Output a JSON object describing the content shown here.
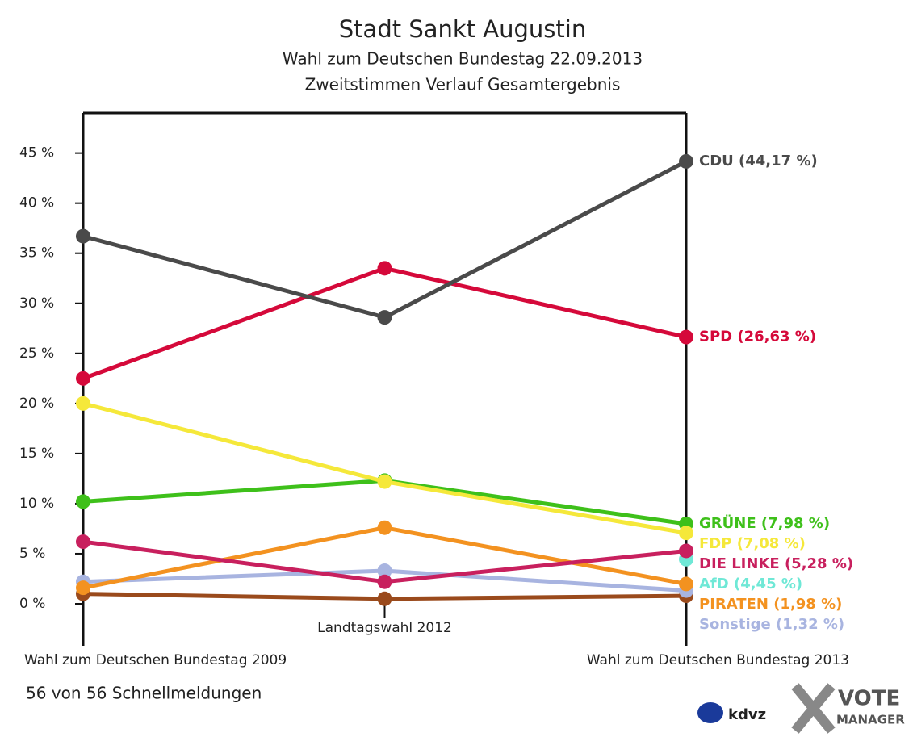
{
  "chart_data": {
    "type": "line",
    "title": "Stadt Sankt Augustin",
    "subtitle": "Wahl zum Deutschen Bundestag 22.09.2013",
    "subtitle2": "Zweitstimmen Verlauf Gesamtergebnis",
    "categories": [
      "Wahl zum Deutschen Bundestag 2009",
      "Landtagswahl 2012",
      "Wahl zum Deutschen Bundestag 2013"
    ],
    "ylim": [
      0,
      49
    ],
    "yticks": [
      {
        "value": 0,
        "label": "0 %"
      },
      {
        "value": 5,
        "label": "5 %"
      },
      {
        "value": 10,
        "label": "10 %"
      },
      {
        "value": 15,
        "label": "15 %"
      },
      {
        "value": 20,
        "label": "20 %"
      },
      {
        "value": 25,
        "label": "25 %"
      },
      {
        "value": 30,
        "label": "30 %"
      },
      {
        "value": 35,
        "label": "35 %"
      },
      {
        "value": 40,
        "label": "40 %"
      },
      {
        "value": 45,
        "label": "45 %"
      }
    ],
    "series": [
      {
        "color": "#4a4a4a",
        "values": [
          36.7,
          28.6,
          44.17
        ],
        "value_labels": [
          null,
          null,
          "CDU (44,17 %)"
        ]
      },
      {
        "color": "#d5093a",
        "values": [
          22.5,
          33.5,
          26.63
        ],
        "value_labels": [
          null,
          null,
          "SPD (26,63 %)"
        ]
      },
      {
        "color": "#f5e83a",
        "values": [
          20.0,
          12.2,
          7.08
        ],
        "value_labels": [
          null,
          null,
          "FDP (7,08 %)"
        ]
      },
      {
        "color": "#3ec01a",
        "values": [
          10.2,
          12.3,
          7.98
        ],
        "value_labels": [
          null,
          null,
          "GRÜNE (7,98 %)"
        ]
      },
      {
        "color": "#c8205e",
        "values": [
          6.2,
          2.2,
          5.28
        ],
        "value_labels": [
          null,
          null,
          "DIE LINKE (5,28 %)"
        ]
      },
      {
        "color": "#6fe8d6",
        "values": [
          null,
          null,
          4.45
        ],
        "value_labels": [
          null,
          null,
          "AfD (4,45 %)"
        ]
      },
      {
        "color": "#f39220",
        "values": [
          1.6,
          7.6,
          1.98
        ],
        "value_labels": [
          null,
          null,
          "PIRATEN (1,98 %)"
        ]
      },
      {
        "color": "#a8b4e0",
        "values": [
          2.2,
          3.3,
          1.32
        ],
        "value_labels": [
          null,
          null,
          "Sonstige (1,32 %)"
        ]
      },
      {
        "color": "#9a4a1c",
        "values": [
          1.0,
          0.5,
          0.8
        ]
      }
    ],
    "footer": "56 von 56 Schnellmeldungen",
    "logo": {
      "kdvz": "kdvz",
      "vote": "VOTE",
      "manager": "MANAGER"
    }
  }
}
